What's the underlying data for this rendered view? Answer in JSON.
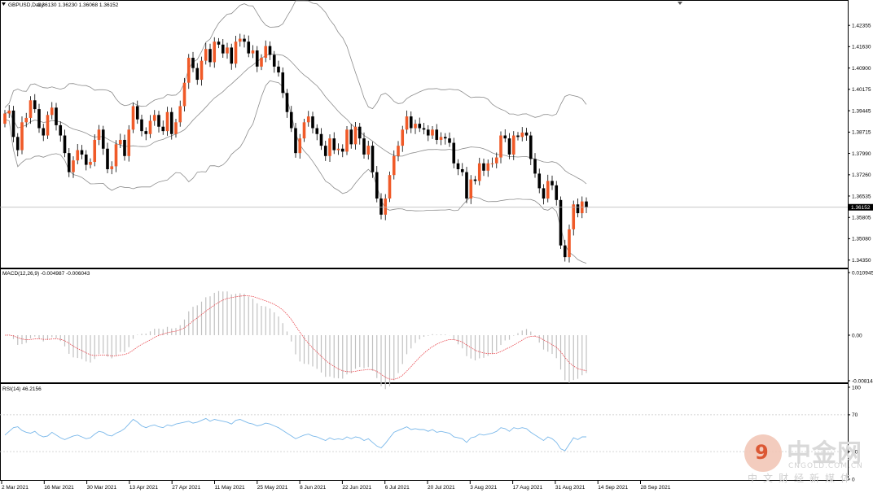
{
  "header": {
    "symbol": "GBPUSD,Daily",
    "ohlc": "1.36130 1.36230 1.36068 1.36152"
  },
  "macd": {
    "label": "MACD(12,26,9) -0.004987 -0.006043"
  },
  "rsi": {
    "label": "RSI(14) 46.2156"
  },
  "colors": {
    "bull": "#f05a28",
    "bear": "#000000",
    "band": "#8c8c8c",
    "signal": "#e8434a",
    "rsi_line": "#7ab8ea",
    "hist": "#c0c0c0",
    "current_line": "#b4b4b4"
  },
  "chart_data": [
    {
      "type": "candlestick",
      "title": "GBPUSD,Daily",
      "y_ticks": [
        "1.42355",
        "1.41630",
        "1.40900",
        "1.40175",
        "1.39445",
        "1.38715",
        "1.37990",
        "1.37260",
        "1.36535",
        "1.35805",
        "1.35080",
        "1.34350"
      ],
      "ylim": [
        1.3412,
        1.4311
      ],
      "current_price": "1.36152",
      "x_ticks": [
        "2 Mar 2021",
        "16 Mar 2021",
        "30 Mar 2021",
        "13 Apr 2021",
        "27 Apr 2021",
        "11 May 2021",
        "25 May 2021",
        "8 Jun 2021",
        "22 Jun 2021",
        "6 Jul 2021",
        "20 Jul 2021",
        "3 Aug 2021",
        "17 Aug 2021",
        "31 Aug 2021",
        "14 Sep 2021",
        "28 Sep 2021"
      ],
      "closes": [
        1.3935,
        1.3945,
        1.3855,
        1.381,
        1.3905,
        1.392,
        1.398,
        1.395,
        1.3885,
        1.386,
        1.393,
        1.3955,
        1.3895,
        1.386,
        1.38,
        1.3735,
        1.3775,
        1.381,
        1.3795,
        1.376,
        1.377,
        1.3845,
        1.388,
        1.3815,
        1.3745,
        1.3755,
        1.383,
        1.3845,
        1.379,
        1.388,
        1.396,
        1.3915,
        1.3875,
        1.3865,
        1.391,
        1.393,
        1.389,
        1.3875,
        1.394,
        1.3865,
        1.3905,
        1.396,
        1.404,
        1.4125,
        1.409,
        1.405,
        1.4115,
        1.4155,
        1.411,
        1.418,
        1.417,
        1.414,
        1.416,
        1.4105,
        1.418,
        1.419,
        1.418,
        1.414,
        1.415,
        1.4095,
        1.4125,
        1.4165,
        1.4135,
        1.4095,
        1.4075,
        1.4005,
        1.394,
        1.3885,
        1.38,
        1.385,
        1.3905,
        1.3925,
        1.3885,
        1.3865,
        1.3825,
        1.379,
        1.385,
        1.381,
        1.3815,
        1.3805,
        1.388,
        1.383,
        1.389,
        1.385,
        1.3795,
        1.3825,
        1.3735,
        1.3645,
        1.359,
        1.3645,
        1.3725,
        1.379,
        1.3825,
        1.388,
        1.3925,
        1.3885,
        1.39,
        1.3885,
        1.388,
        1.386,
        1.388,
        1.3845,
        1.3855,
        1.385,
        1.3835,
        1.3765,
        1.3745,
        1.3735,
        1.3645,
        1.371,
        1.3705,
        1.3765,
        1.374,
        1.3765,
        1.3765,
        1.3785,
        1.386,
        1.385,
        1.3795,
        1.386,
        1.3855,
        1.387,
        1.386,
        1.378,
        1.373,
        1.368,
        1.3645,
        1.3705,
        1.369,
        1.364,
        1.3485,
        1.3445,
        1.354,
        1.3625,
        1.3595,
        1.3635,
        1.3615
      ],
      "macd_signal_range": [
        -0.006043,
        0.00853
      ],
      "macd_ticks": [
        "0.010945",
        "0.00",
        "-0.008144"
      ],
      "rsi_ticks": [
        "100",
        "70",
        "30",
        "0"
      ],
      "rsi_values": [
        48,
        52,
        56,
        57,
        53,
        51,
        50,
        52,
        48,
        46,
        47,
        51,
        48,
        45,
        43,
        45,
        47,
        48,
        46,
        44,
        45,
        49,
        52,
        51,
        48,
        47,
        50,
        52,
        55,
        60,
        65,
        62,
        58,
        56,
        58,
        59,
        57,
        56,
        59,
        58,
        60,
        61,
        62,
        63,
        61,
        62,
        64,
        66,
        63,
        65,
        64,
        63,
        62,
        60,
        64,
        65,
        63,
        61,
        60,
        58,
        59,
        61,
        60,
        58,
        56,
        53,
        50,
        47,
        44,
        46,
        48,
        49,
        47,
        46,
        44,
        42,
        45,
        43,
        44,
        43,
        46,
        44,
        46,
        45,
        42,
        44,
        40,
        36,
        34,
        39,
        45,
        51,
        53,
        55,
        57,
        54,
        55,
        54,
        54,
        52,
        54,
        51,
        52,
        51,
        50,
        46,
        45,
        44,
        40,
        45,
        46,
        49,
        48,
        49,
        50,
        52,
        56,
        55,
        52,
        56,
        55,
        56,
        55,
        51,
        48,
        45,
        42,
        46,
        44,
        40,
        33,
        31,
        38,
        45,
        43,
        46,
        46
      ]
    }
  ]
}
